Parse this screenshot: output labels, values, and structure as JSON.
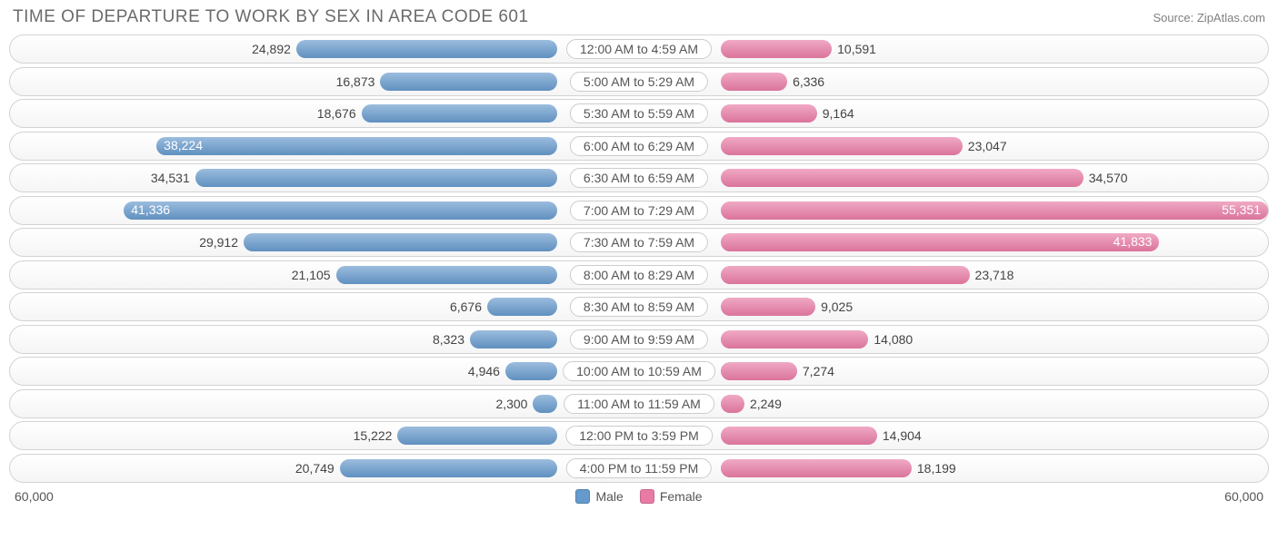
{
  "title": "TIME OF DEPARTURE TO WORK BY SEX IN AREA CODE 601",
  "source": "Source: ZipAtlas.com",
  "chart": {
    "type": "bidirectional-bar",
    "max_value": 60000,
    "axis_left_label": "60,000",
    "axis_right_label": "60,000",
    "male_color": "#6699cc",
    "female_color": "#e87ba5",
    "row_bg_gradient_top": "#ffffff",
    "row_bg_gradient_bottom": "#f5f5f5",
    "border_color": "#d3d3d3",
    "text_color": "#444444",
    "value_fontsize": 14,
    "category_fontsize": 14,
    "title_fontsize": 19,
    "title_color": "#6b6b6b",
    "inside_threshold": 37000,
    "rows": [
      {
        "category": "12:00 AM to 4:59 AM",
        "male": 24892,
        "male_label": "24,892",
        "female": 10591,
        "female_label": "10,591"
      },
      {
        "category": "5:00 AM to 5:29 AM",
        "male": 16873,
        "male_label": "16,873",
        "female": 6336,
        "female_label": "6,336"
      },
      {
        "category": "5:30 AM to 5:59 AM",
        "male": 18676,
        "male_label": "18,676",
        "female": 9164,
        "female_label": "9,164"
      },
      {
        "category": "6:00 AM to 6:29 AM",
        "male": 38224,
        "male_label": "38,224",
        "female": 23047,
        "female_label": "23,047"
      },
      {
        "category": "6:30 AM to 6:59 AM",
        "male": 34531,
        "male_label": "34,531",
        "female": 34570,
        "female_label": "34,570"
      },
      {
        "category": "7:00 AM to 7:29 AM",
        "male": 41336,
        "male_label": "41,336",
        "female": 55351,
        "female_label": "55,351"
      },
      {
        "category": "7:30 AM to 7:59 AM",
        "male": 29912,
        "male_label": "29,912",
        "female": 41833,
        "female_label": "41,833"
      },
      {
        "category": "8:00 AM to 8:29 AM",
        "male": 21105,
        "male_label": "21,105",
        "female": 23718,
        "female_label": "23,718"
      },
      {
        "category": "8:30 AM to 8:59 AM",
        "male": 6676,
        "male_label": "6,676",
        "female": 9025,
        "female_label": "9,025"
      },
      {
        "category": "9:00 AM to 9:59 AM",
        "male": 8323,
        "male_label": "8,323",
        "female": 14080,
        "female_label": "14,080"
      },
      {
        "category": "10:00 AM to 10:59 AM",
        "male": 4946,
        "male_label": "4,946",
        "female": 7274,
        "female_label": "7,274"
      },
      {
        "category": "11:00 AM to 11:59 AM",
        "male": 2300,
        "male_label": "2,300",
        "female": 2249,
        "female_label": "2,249"
      },
      {
        "category": "12:00 PM to 3:59 PM",
        "male": 15222,
        "male_label": "15,222",
        "female": 14904,
        "female_label": "14,904"
      },
      {
        "category": "4:00 PM to 11:59 PM",
        "male": 20749,
        "male_label": "20,749",
        "female": 18199,
        "female_label": "18,199"
      }
    ],
    "legend": {
      "male_label": "Male",
      "female_label": "Female"
    }
  }
}
